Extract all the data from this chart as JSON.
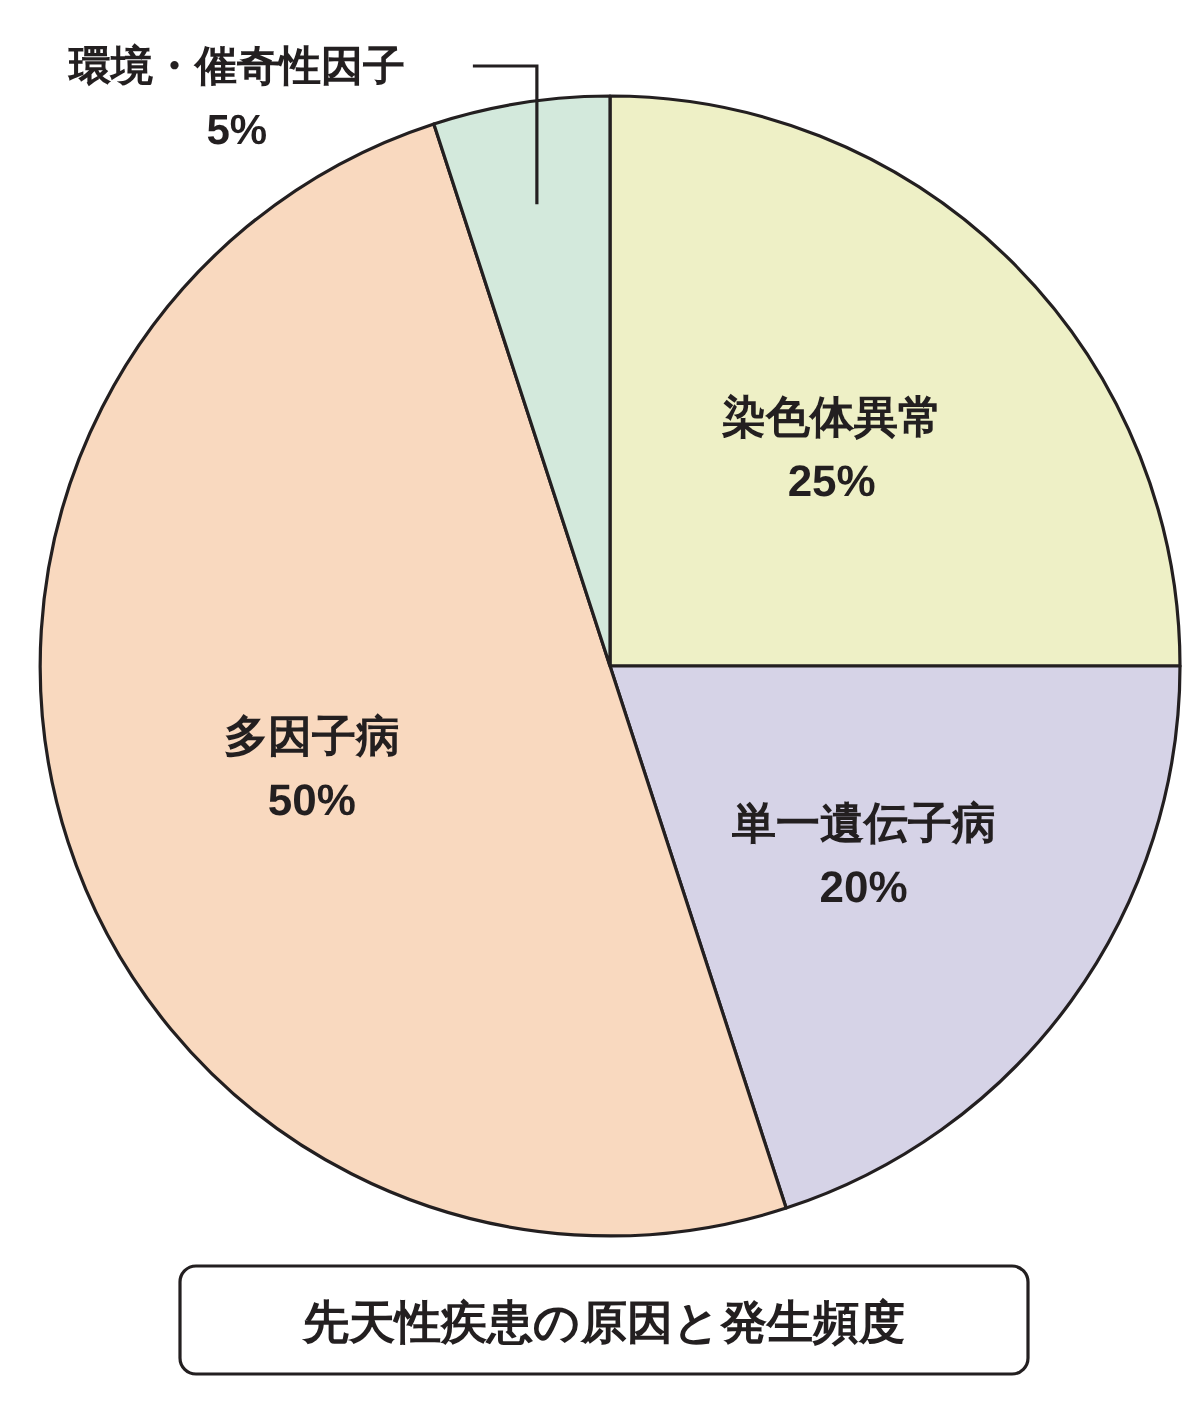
{
  "chart_data": {
    "type": "pie",
    "title": "先天性疾患の原因と発生頻度",
    "categories": [
      "染色体異常",
      "単一遺伝子病",
      "多因子病",
      "環境・催奇性因子"
    ],
    "values": [
      25,
      20,
      50,
      5
    ],
    "colors": [
      "#eef0c6",
      "#d6d3e7",
      "#f9d9bf",
      "#d3e9dc"
    ],
    "value_labels": [
      "25%",
      "20%",
      "50%",
      "5%"
    ]
  }
}
